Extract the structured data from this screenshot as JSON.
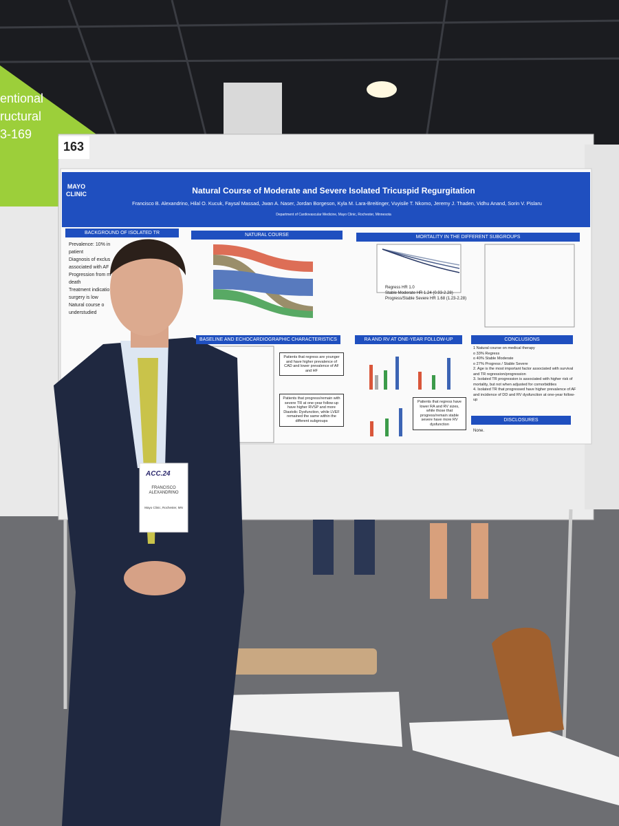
{
  "booth_number": "163",
  "sign": [
    "entional",
    "ructural",
    "3-169"
  ],
  "poster": {
    "logo": [
      "MAYO",
      "CLINIC"
    ],
    "title": "Natural Course of Moderate and Severe Isolated Tricuspid Regurgitation",
    "authors": "Francisco B. Alexandrino, Hilal O. Kucuk, Faysal Massad, Jwan A. Naser, Jordan Borgeson, Kyla M. Lara-Breitinger, Vuyisile T. Nkomo, Jeremy J. Thaden, Vidhu Anand, Sorin V. Pislaru",
    "affiliation": "Department of Cardiovascular Medicine, Mayo Clinic, Rochester, Minnesota",
    "sections": {
      "background": "BACKGROUND OF ISOLATED TR",
      "natural_course": "NATURAL COURSE",
      "mortality": "MORTALITY IN THE DIFFERENT SUBGROUPS",
      "baseline": "BASELINE AND ECHOCARDIOGRAPHIC CHARACTERISTICS",
      "ra_rv": "RA AND RV AT ONE-YEAR FOLLOW-UP",
      "conclusions": "CONCLUSIONS",
      "disclosures": "DISCLOSURES"
    },
    "background_points": [
      "Prevalence: 10% in patient",
      "Diagnosis of exclus",
      "associated with AF",
      "Progression from m",
      "death",
      "Treatment indicatio",
      "surgery is low",
      "Natural course o",
      "understudied"
    ],
    "mortality_legend": [
      "Regress HR 1.0",
      "Stable Moderate HR 1.24 (0.93-2.28)",
      "Progress/Stable Severe HR 1.68 (1.23-2.28)"
    ],
    "findings": [
      "Patients that regress are younger and have higher prevalence of CAD and lower prevalence of AF and HF",
      "Patients that progress/remain with severe TR at one-year follow-up have higher RVSP and more Diastolic Dysfunction, while LVEF remained the same within the different subgroups",
      "Patients that regress have lower RA and RV sizes, while those that progress/remain stable severe have more RV dysfunction"
    ],
    "conclusions": [
      "1 Natural course on medical therapy",
      "o 33% Regress",
      "o 40% Stable Moderate",
      "o 27% Progress / Stable Severe",
      "2. Age is the most important factor associated with survival and TR regression/progression",
      "3. Isolated TR progression is associated with higher risk of mortality, but not when adjusted for comorbidities",
      "4. Isolated TR that progressed have higher prevalence of AF and incidence of DD and RV dysfunction at one-year follow-up"
    ],
    "disclosures_text": "None."
  },
  "badge": {
    "event": "ACC.24",
    "name": [
      "FRANCISCO",
      "ALEXANDRINO"
    ],
    "affiliation": "Mayo Clinic, Rochester, MN"
  }
}
